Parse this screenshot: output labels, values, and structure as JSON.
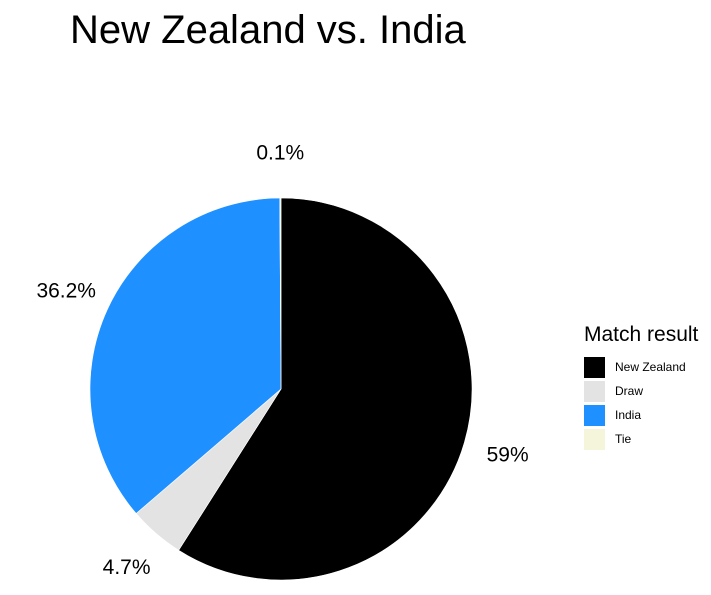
{
  "chart_data": {
    "type": "pie",
    "title": "New Zealand vs. India",
    "legend_title": "Match result",
    "legend_position": "right",
    "slices": [
      {
        "label": "New Zealand",
        "value": 59.0,
        "display": "59%",
        "color": "#000000"
      },
      {
        "label": "Draw",
        "value": 4.7,
        "display": "4.7%",
        "color": "#e3e3e3"
      },
      {
        "label": "India",
        "value": 36.2,
        "display": "36.2%",
        "color": "#1e90ff"
      },
      {
        "label": "Tie",
        "value": 0.1,
        "display": "0.1%",
        "color": "#f5f5dc"
      }
    ]
  }
}
